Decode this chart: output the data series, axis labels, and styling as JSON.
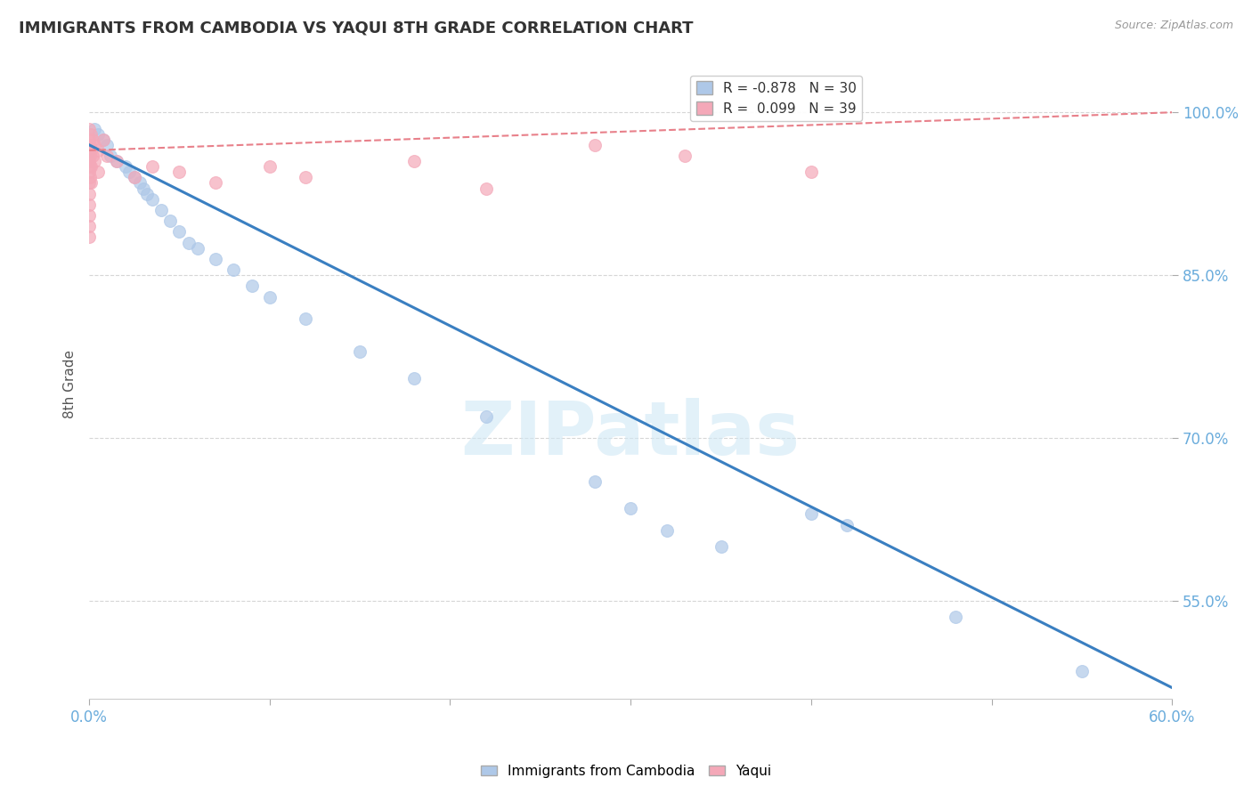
{
  "title": "IMMIGRANTS FROM CAMBODIA VS YAQUI 8TH GRADE CORRELATION CHART",
  "source": "Source: ZipAtlas.com",
  "ylabel": "8th Grade",
  "blue_scatter": [
    [
      0.0,
      96.5
    ],
    [
      0.3,
      98.5
    ],
    [
      0.5,
      98.0
    ],
    [
      0.8,
      97.5
    ],
    [
      1.0,
      97.0
    ],
    [
      1.2,
      96.0
    ],
    [
      1.5,
      95.5
    ],
    [
      2.0,
      95.0
    ],
    [
      2.2,
      94.5
    ],
    [
      2.5,
      94.0
    ],
    [
      2.8,
      93.5
    ],
    [
      3.0,
      93.0
    ],
    [
      3.2,
      92.5
    ],
    [
      3.5,
      92.0
    ],
    [
      4.0,
      91.0
    ],
    [
      4.5,
      90.0
    ],
    [
      5.0,
      89.0
    ],
    [
      5.5,
      88.0
    ],
    [
      6.0,
      87.5
    ],
    [
      7.0,
      86.5
    ],
    [
      8.0,
      85.5
    ],
    [
      9.0,
      84.0
    ],
    [
      10.0,
      83.0
    ],
    [
      12.0,
      81.0
    ],
    [
      15.0,
      78.0
    ],
    [
      18.0,
      75.5
    ],
    [
      22.0,
      72.0
    ],
    [
      28.0,
      66.0
    ],
    [
      30.0,
      63.5
    ],
    [
      32.0,
      61.5
    ],
    [
      35.0,
      60.0
    ],
    [
      40.0,
      63.0
    ],
    [
      42.0,
      62.0
    ],
    [
      48.0,
      53.5
    ],
    [
      55.0,
      48.5
    ]
  ],
  "pink_scatter": [
    [
      0.0,
      98.5
    ],
    [
      0.0,
      97.5
    ],
    [
      0.0,
      96.5
    ],
    [
      0.0,
      95.5
    ],
    [
      0.0,
      94.5
    ],
    [
      0.0,
      93.5
    ],
    [
      0.0,
      92.5
    ],
    [
      0.0,
      91.5
    ],
    [
      0.0,
      90.5
    ],
    [
      0.0,
      89.5
    ],
    [
      0.0,
      88.5
    ],
    [
      0.05,
      97.0
    ],
    [
      0.05,
      96.0
    ],
    [
      0.05,
      95.0
    ],
    [
      0.05,
      94.0
    ],
    [
      0.1,
      98.0
    ],
    [
      0.1,
      96.5
    ],
    [
      0.1,
      95.0
    ],
    [
      0.1,
      93.5
    ],
    [
      0.2,
      97.5
    ],
    [
      0.2,
      96.0
    ],
    [
      0.3,
      97.0
    ],
    [
      0.3,
      95.5
    ],
    [
      0.5,
      96.5
    ],
    [
      0.5,
      94.5
    ],
    [
      0.8,
      97.5
    ],
    [
      1.0,
      96.0
    ],
    [
      1.5,
      95.5
    ],
    [
      2.5,
      94.0
    ],
    [
      3.5,
      95.0
    ],
    [
      5.0,
      94.5
    ],
    [
      7.0,
      93.5
    ],
    [
      10.0,
      95.0
    ],
    [
      12.0,
      94.0
    ],
    [
      18.0,
      95.5
    ],
    [
      22.0,
      93.0
    ],
    [
      28.0,
      97.0
    ],
    [
      33.0,
      96.0
    ],
    [
      40.0,
      94.5
    ]
  ],
  "blue_line": [
    [
      0.0,
      97.0
    ],
    [
      60.0,
      47.0
    ]
  ],
  "pink_line": [
    [
      0.0,
      96.5
    ],
    [
      60.0,
      100.0
    ]
  ],
  "xlim": [
    0.0,
    60.0
  ],
  "ylim": [
    46.0,
    104.0
  ],
  "yticks": [
    55.0,
    70.0,
    85.0,
    100.0
  ],
  "xtick_labels_show": [
    "0.0%",
    "60.0%"
  ],
  "xtick_positions_minor": [
    10.0,
    20.0,
    30.0,
    40.0,
    50.0
  ],
  "blue_color": "#aec8e8",
  "pink_color": "#f4a8b8",
  "blue_line_color": "#3a7fc1",
  "pink_line_color": "#e8808a",
  "background_color": "#ffffff",
  "watermark_text": "ZIPatlas",
  "watermark_color": "#d0e8f5",
  "grid_color": "#cccccc",
  "tick_color": "#6aacdc",
  "ylabel_color": "#555555",
  "title_color": "#333333",
  "source_color": "#999999"
}
